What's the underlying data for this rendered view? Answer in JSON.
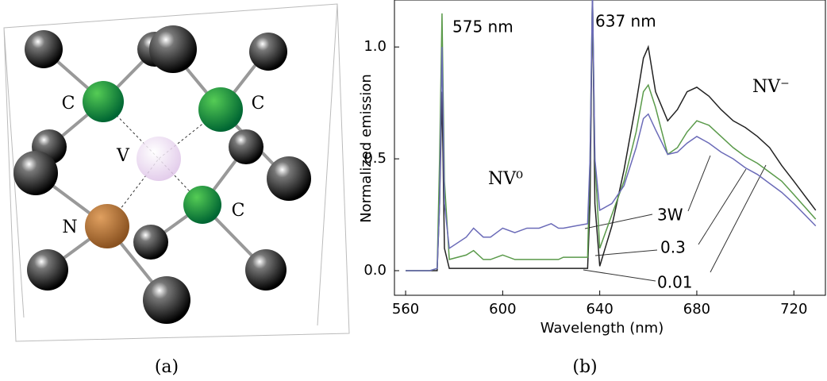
{
  "diagram": {
    "labels": [
      "C",
      "C",
      "V",
      "N",
      "C"
    ],
    "caption": "(a)"
  },
  "chart_data": {
    "type": "line",
    "xlabel": "Wavelength (nm)",
    "ylabel": "Normalized emission",
    "caption": "(b)",
    "annotations": [
      "575 nm",
      "637 nm",
      "NV⁰",
      "NV⁻"
    ],
    "x": [
      560,
      570,
      573,
      574,
      575,
      576,
      578,
      585,
      588,
      592,
      595,
      600,
      605,
      610,
      615,
      620,
      623,
      625,
      630,
      635,
      636,
      637,
      638,
      640,
      645,
      650,
      655,
      658,
      660,
      663,
      668,
      672,
      676,
      680,
      685,
      690,
      695,
      700,
      705,
      710,
      715,
      720,
      729
    ],
    "series": [
      {
        "name": "3W",
        "color": "#6b6bb8",
        "values": [
          0,
          0,
          0.01,
          0.3,
          1.0,
          0.3,
          0.1,
          0.15,
          0.19,
          0.15,
          0.15,
          0.19,
          0.17,
          0.19,
          0.19,
          0.21,
          0.19,
          0.19,
          0.2,
          0.21,
          0.5,
          1.25,
          0.5,
          0.27,
          0.3,
          0.38,
          0.55,
          0.68,
          0.7,
          0.63,
          0.52,
          0.53,
          0.57,
          0.6,
          0.57,
          0.53,
          0.5,
          0.46,
          0.43,
          0.39,
          0.35,
          0.3,
          0.2
        ]
      },
      {
        "name": "0.3",
        "color": "#5a9a4a",
        "values": [
          0,
          0,
          0.01,
          0.5,
          1.15,
          0.4,
          0.05,
          0.07,
          0.09,
          0.05,
          0.05,
          0.07,
          0.05,
          0.05,
          0.05,
          0.05,
          0.05,
          0.06,
          0.06,
          0.06,
          0.5,
          1.25,
          0.5,
          0.1,
          0.25,
          0.4,
          0.62,
          0.8,
          0.83,
          0.73,
          0.52,
          0.55,
          0.62,
          0.67,
          0.65,
          0.6,
          0.55,
          0.51,
          0.48,
          0.44,
          0.4,
          0.34,
          0.23
        ]
      },
      {
        "name": "0.01",
        "color": "#222222",
        "values": [
          0,
          0,
          0,
          0.3,
          0.8,
          0.1,
          0.01,
          0.01,
          0.01,
          0.01,
          0.01,
          0.01,
          0.01,
          0.01,
          0.01,
          0.01,
          0.01,
          0.01,
          0.01,
          0.01,
          0.3,
          1.25,
          0.3,
          0.02,
          0.2,
          0.45,
          0.75,
          0.95,
          1.0,
          0.8,
          0.67,
          0.72,
          0.8,
          0.82,
          0.78,
          0.72,
          0.67,
          0.64,
          0.6,
          0.55,
          0.47,
          0.4,
          0.27
        ]
      }
    ],
    "xlim": [
      555.4,
      733
    ],
    "ylim": [
      -0.11,
      1.21
    ],
    "xticks": [
      560,
      600,
      640,
      680,
      720
    ],
    "yticks": [
      {
        "value": 0,
        "label": "0.0"
      },
      0.5,
      {
        "value": 1,
        "label": "1.0"
      }
    ]
  }
}
